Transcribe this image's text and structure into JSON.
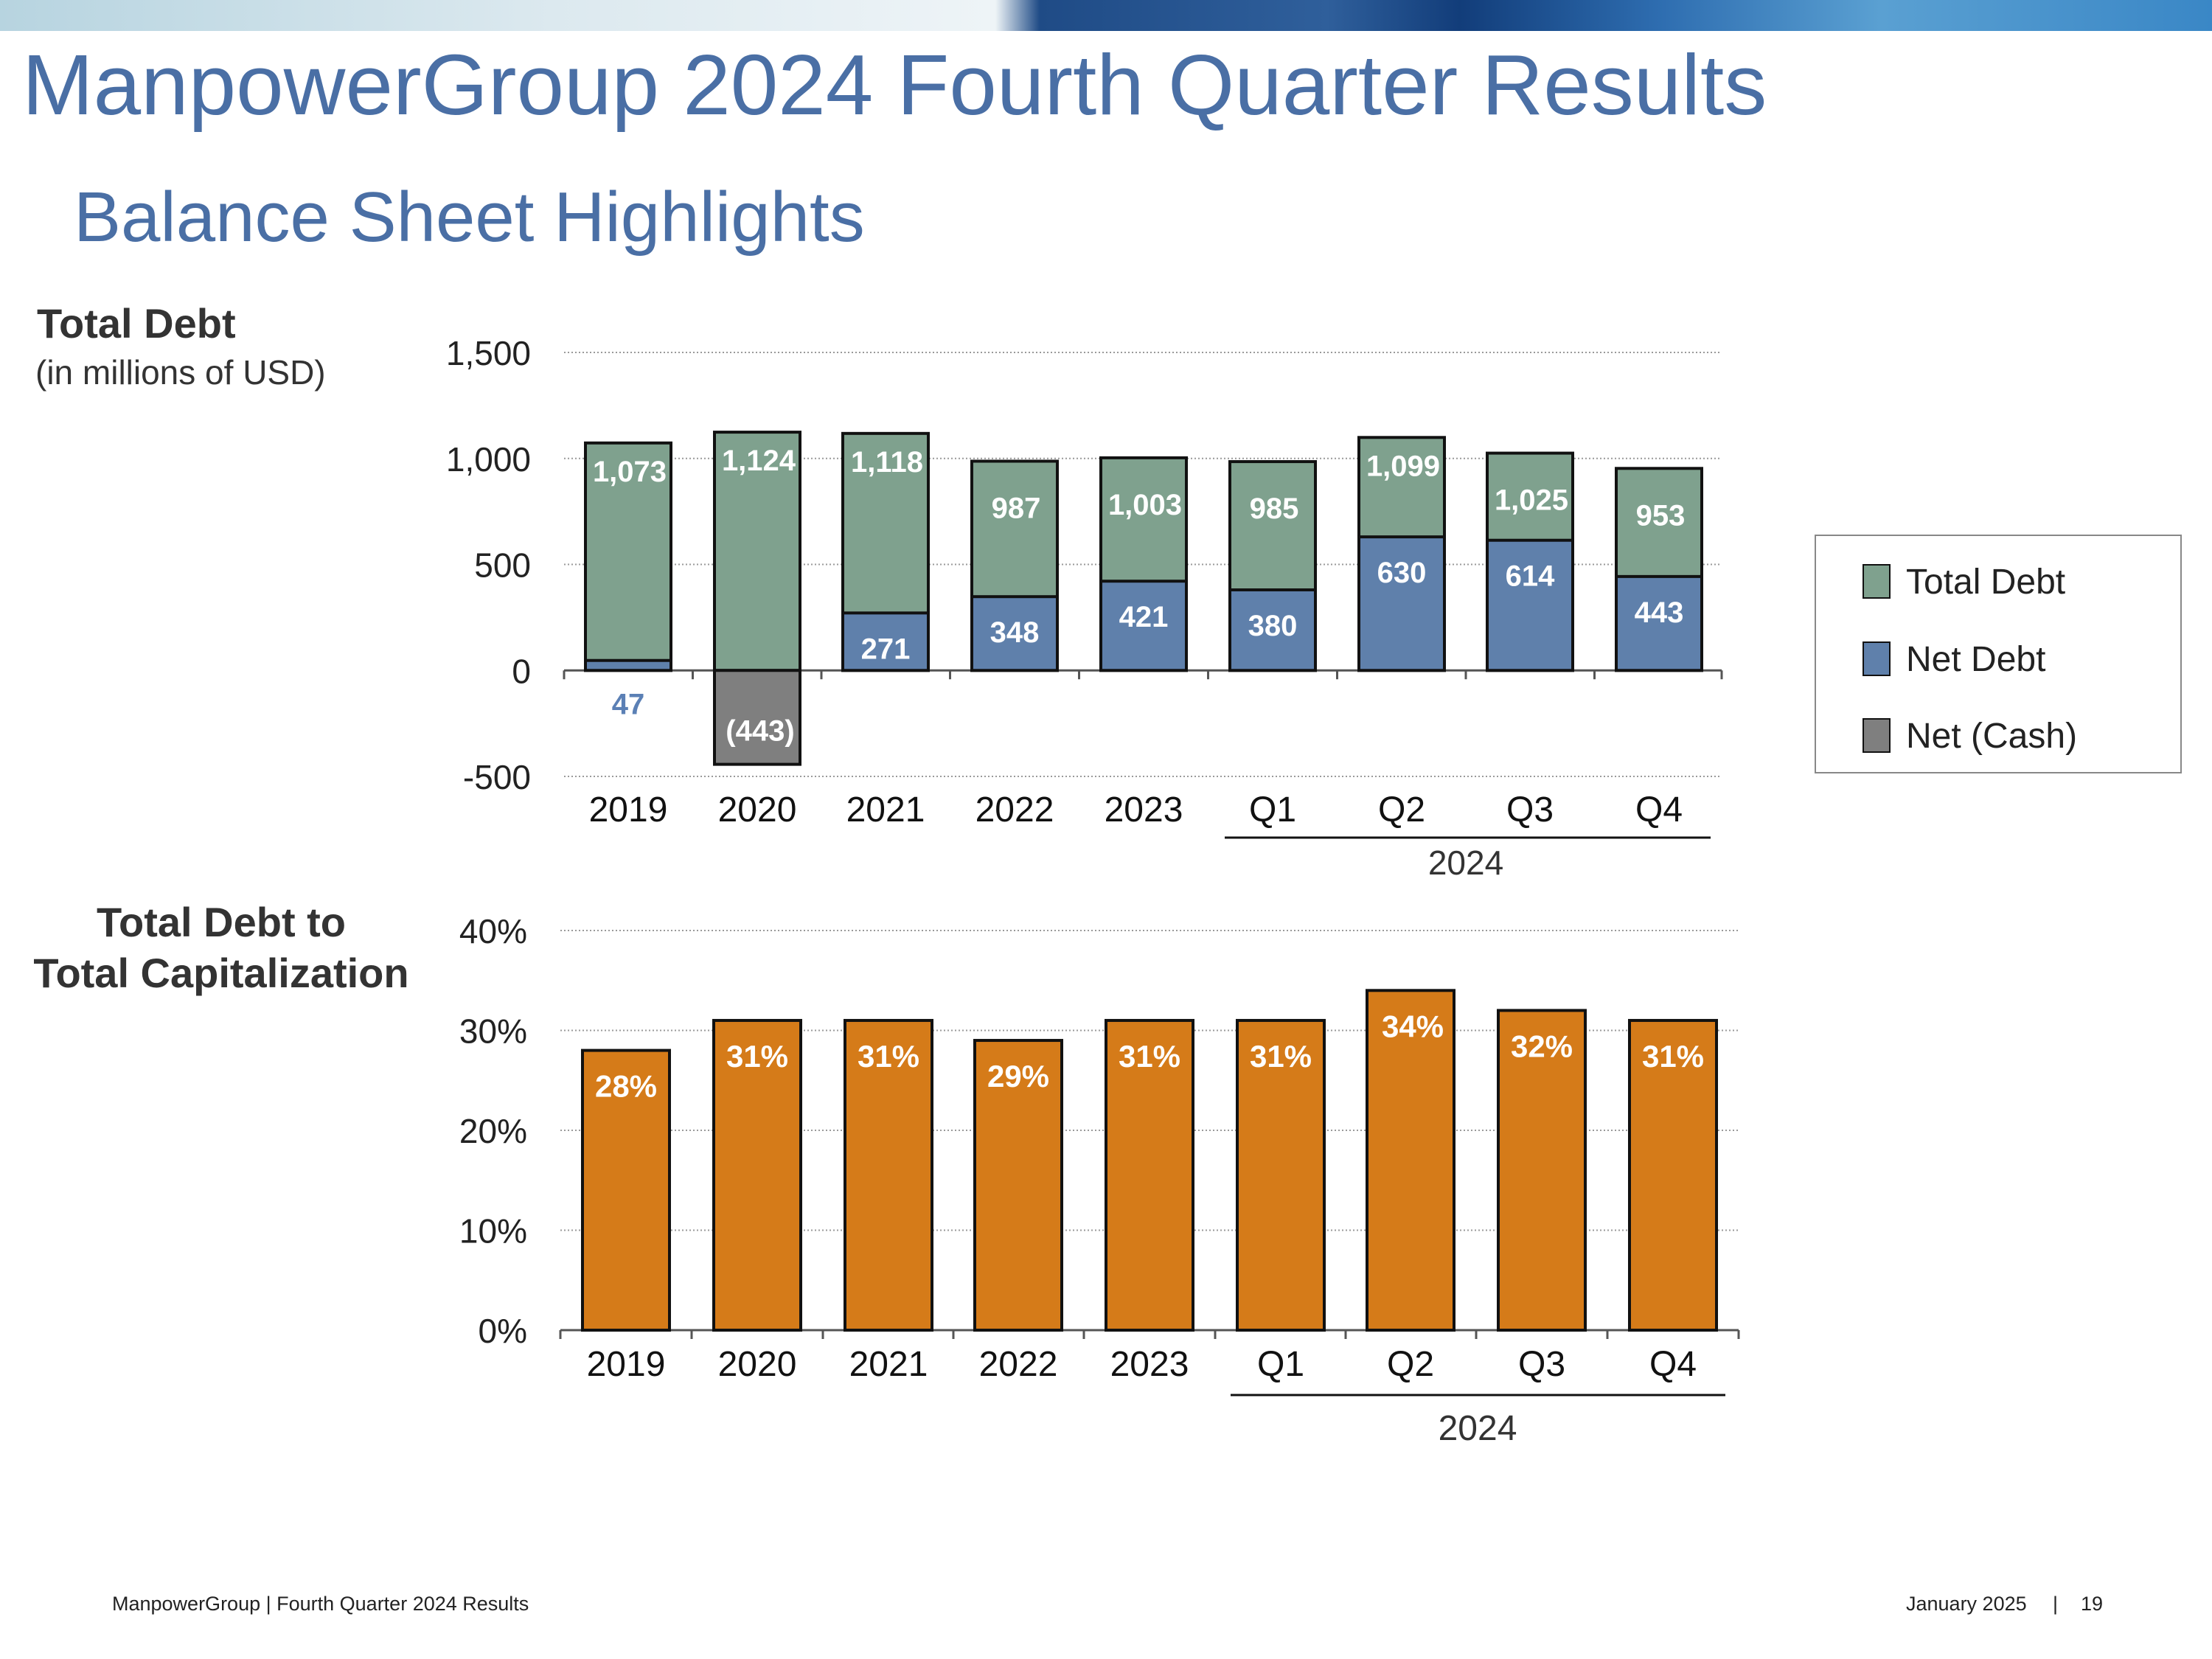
{
  "header": {
    "title": "ManpowerGroup 2024 Fourth Quarter Results",
    "subtitle": "Balance Sheet Highlights"
  },
  "colors": {
    "title": "#4a6fa5",
    "total_debt": "#7fa18e",
    "net_debt": "#5f80ab",
    "net_cash": "#7f7f7f",
    "ratio": "#d57b19"
  },
  "chart_data": [
    {
      "type": "bar",
      "stacking": "overlay",
      "title": "Total Debt",
      "subtitle": "(in millions of USD)",
      "categories": [
        "2019",
        "2020",
        "2021",
        "2022",
        "2023",
        "Q1",
        "Q2",
        "Q3",
        "Q4"
      ],
      "group_label": "2024",
      "series": [
        {
          "name": "Total Debt",
          "values": [
            1073,
            1124,
            1118,
            987,
            1003,
            985,
            1099,
            1025,
            953
          ],
          "labels": [
            "1,073",
            "1,124",
            "1,118",
            "987",
            "1,003",
            "985",
            "1,099",
            "1,025",
            "953"
          ]
        },
        {
          "name": "Net Debt",
          "values": [
            47,
            null,
            271,
            348,
            421,
            380,
            630,
            614,
            443
          ],
          "labels": [
            "47",
            "",
            "271",
            "348",
            "421",
            "380",
            "630",
            "614",
            "443"
          ]
        },
        {
          "name": "Net (Cash)",
          "values": [
            null,
            -443,
            null,
            null,
            null,
            null,
            null,
            null,
            null
          ],
          "labels": [
            "",
            "(443)",
            "",
            "",
            "",
            "",
            "",
            "",
            ""
          ]
        }
      ],
      "y_ticks": [
        "1,500",
        "1,000",
        "500",
        "0",
        "-500"
      ],
      "ylim": [
        -500,
        1500
      ],
      "legend": [
        "Total Debt",
        "Net Debt",
        "Net (Cash)"
      ],
      "legend_position": "right",
      "grid": true
    },
    {
      "type": "bar",
      "title": "Total Debt to Total Capitalization",
      "title_lines": [
        "Total Debt to",
        "Total Capitalization"
      ],
      "categories": [
        "2019",
        "2020",
        "2021",
        "2022",
        "2023",
        "Q1",
        "Q2",
        "Q3",
        "Q4"
      ],
      "group_label": "2024",
      "values": [
        28,
        31,
        31,
        29,
        31,
        31,
        34,
        32,
        31
      ],
      "labels": [
        "28%",
        "31%",
        "31%",
        "29%",
        "31%",
        "31%",
        "34%",
        "32%",
        "31%"
      ],
      "y_ticks": [
        "40%",
        "30%",
        "20%",
        "10%",
        "0%"
      ],
      "ylim": [
        0,
        40
      ],
      "grid": true
    }
  ],
  "footer": {
    "left": "ManpowerGroup  |  Fourth Quarter 2024 Results",
    "date": "January 2025",
    "separator": "|",
    "page": "19"
  }
}
